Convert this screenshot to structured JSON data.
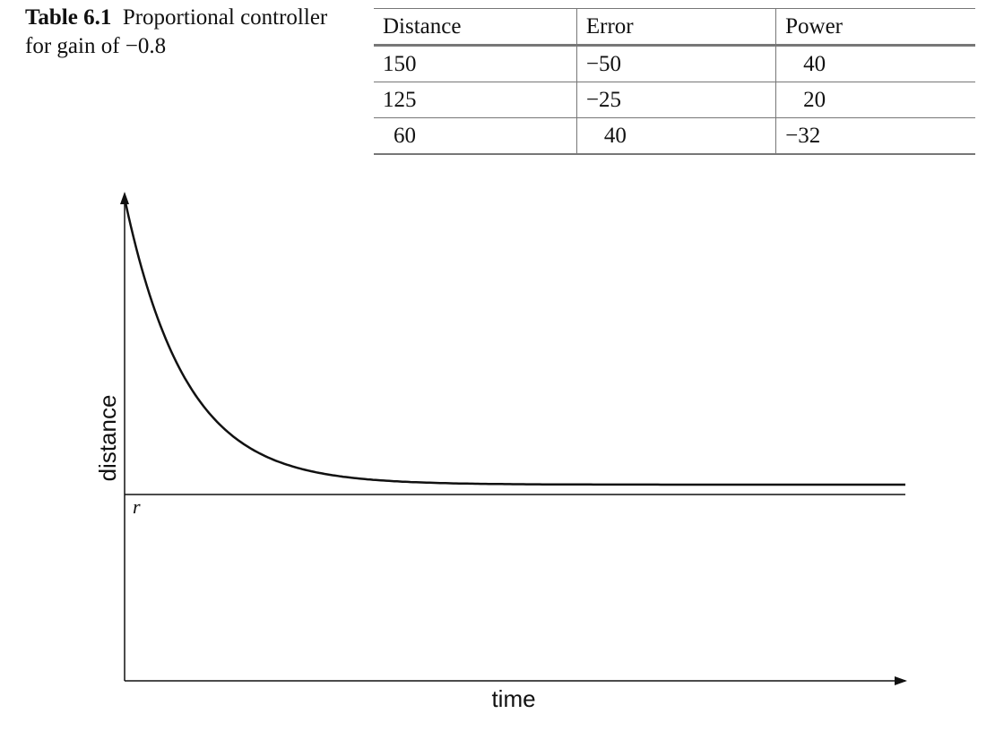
{
  "caption": {
    "label": "Table 6.1",
    "text": "Proportional controller for gain of −0.8"
  },
  "table": {
    "headers": [
      "Distance",
      "Error",
      "Power"
    ],
    "rows": [
      [
        "150",
        "−50",
        "40"
      ],
      [
        "125",
        "−25",
        "20"
      ],
      [
        "60",
        "40",
        "−32"
      ]
    ]
  },
  "chart_data": {
    "type": "line",
    "title": "",
    "xlabel": "time",
    "ylabel": "distance",
    "reference_label": "r",
    "curve_shape": "exponential decay toward a level slightly above r",
    "grid": false,
    "legend": "none"
  }
}
